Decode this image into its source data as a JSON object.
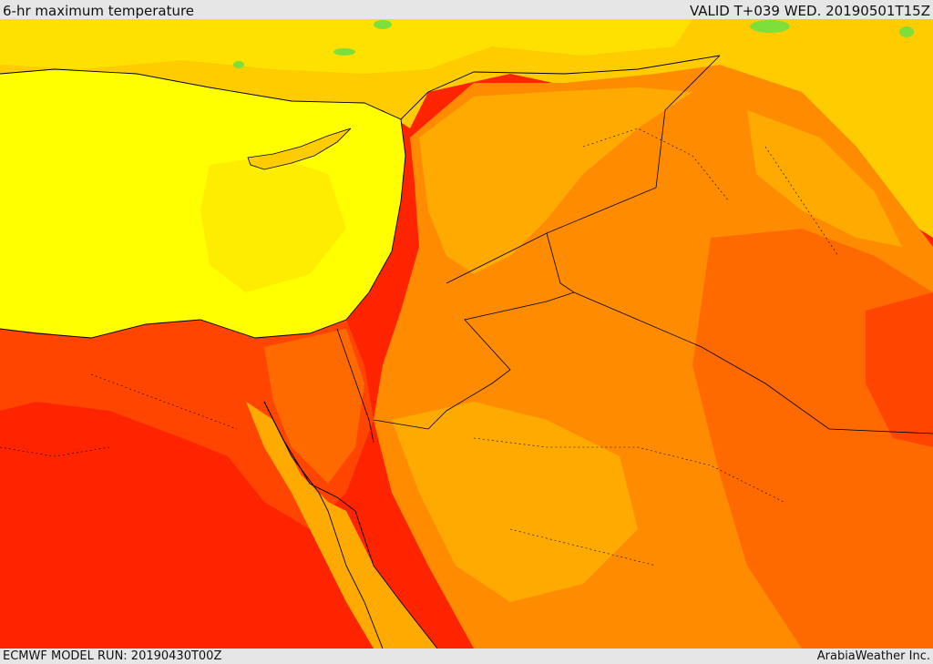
{
  "header": {
    "title": "6-hr maximum temperature",
    "valid": "VALID T+039 WED. 20190501T15Z"
  },
  "footer": {
    "model_run": "ECMWF MODEL RUN: 20190430T00Z",
    "credit": "ArabiaWeather Inc."
  },
  "palette": {
    "yellow_light": "#ffff00",
    "yellow": "#ffe100",
    "gold": "#ffcc00",
    "amber": "#ffaa00",
    "orange": "#ff8c00",
    "dark_orange": "#ff6a00",
    "red_orange": "#ff4500",
    "red": "#ff2400",
    "green": "#7ddf3a",
    "border": "#000000"
  }
}
